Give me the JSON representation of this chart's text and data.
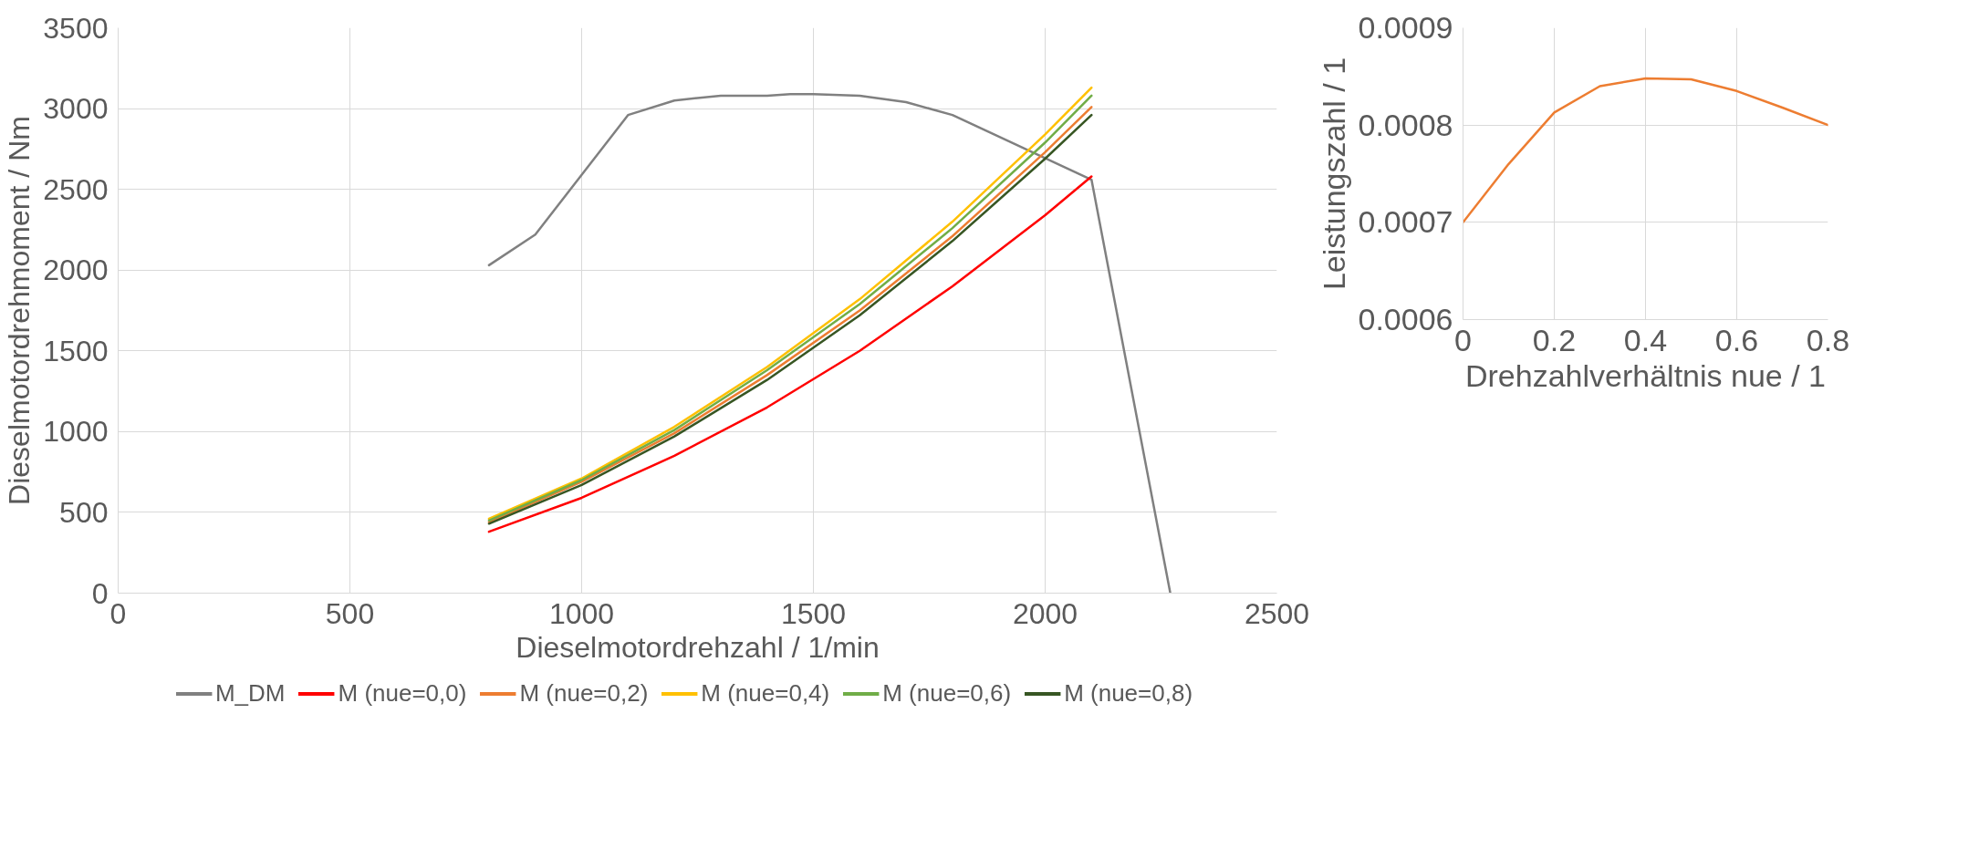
{
  "chart_data": [
    {
      "type": "line",
      "xlabel": "Dieselmotordrehzahl / 1/min",
      "ylabel": "Dieselmotordrehmoment / Nm",
      "xlim": [
        0,
        2500
      ],
      "ylim": [
        0,
        3500
      ],
      "xticks": [
        0,
        500,
        1000,
        1500,
        2000,
        2500
      ],
      "yticks": [
        0,
        500,
        1000,
        1500,
        2000,
        2500,
        3000,
        3500
      ],
      "grid": true,
      "legend": "bottom",
      "series": [
        {
          "name": "M_DM",
          "color": "#808080",
          "x": [
            800,
            900,
            1000,
            1100,
            1200,
            1300,
            1400,
            1450,
            1500,
            1600,
            1700,
            1800,
            2100,
            2270
          ],
          "values": [
            2030,
            2220,
            2590,
            2960,
            3050,
            3080,
            3080,
            3090,
            3090,
            3080,
            3040,
            2960,
            2560,
            0
          ]
        },
        {
          "name": "M (nue=0,0)",
          "color": "#ff0000",
          "x": [
            800,
            1000,
            1200,
            1400,
            1600,
            1800,
            2000,
            2100
          ],
          "values": [
            380,
            590,
            850,
            1150,
            1500,
            1900,
            2340,
            2580
          ]
        },
        {
          "name": "M (nue=0,2)",
          "color": "#ed7d31",
          "x": [
            800,
            1000,
            1200,
            1400,
            1600,
            1800,
            2000,
            2100
          ],
          "values": [
            440,
            690,
            990,
            1350,
            1750,
            2210,
            2730,
            3010
          ]
        },
        {
          "name": "M (nue=0,4)",
          "color": "#ffc000",
          "x": [
            800,
            1000,
            1200,
            1400,
            1600,
            1800,
            2000,
            2100
          ],
          "values": [
            460,
            710,
            1030,
            1400,
            1820,
            2300,
            2840,
            3130
          ]
        },
        {
          "name": "M (nue=0,6)",
          "color": "#70ad47",
          "x": [
            800,
            1000,
            1200,
            1400,
            1600,
            1800,
            2000,
            2100
          ],
          "values": [
            450,
            700,
            1010,
            1380,
            1790,
            2260,
            2790,
            3080
          ]
        },
        {
          "name": "M (nue=0,8)",
          "color": "#375623",
          "x": [
            800,
            1000,
            1200,
            1400,
            1600,
            1800,
            2000,
            2100
          ],
          "values": [
            430,
            670,
            970,
            1320,
            1720,
            2180,
            2690,
            2960
          ]
        }
      ]
    },
    {
      "type": "line",
      "xlabel": "Drehzahlverhältnis nue / 1",
      "ylabel": "Leistungszahl / 1",
      "xlim": [
        0,
        0.8
      ],
      "ylim": [
        0.0006,
        0.0009
      ],
      "xticks": [
        0,
        0.2,
        0.4,
        0.6,
        0.8
      ],
      "yticks": [
        0.0006,
        0.0007,
        0.0008,
        0.0009
      ],
      "grid": true,
      "series": [
        {
          "color": "#ed7d31",
          "x": [
            0,
            0.1,
            0.2,
            0.3,
            0.4,
            0.5,
            0.6,
            0.7,
            0.8
          ],
          "values": [
            0.0007,
            0.00076,
            0.000813,
            0.00084,
            0.000848,
            0.000847,
            0.000835,
            0.000818,
            0.0008
          ]
        }
      ]
    }
  ]
}
